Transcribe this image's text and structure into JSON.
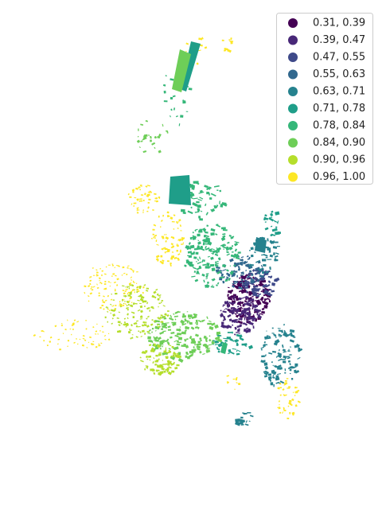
{
  "legend": {
    "items": [
      {
        "label": "0.31, 0.39",
        "color": "#440154"
      },
      {
        "label": "0.39, 0.47",
        "color": "#482878"
      },
      {
        "label": "0.47, 0.55",
        "color": "#3e4989"
      },
      {
        "label": "0.55, 0.63",
        "color": "#31688e"
      },
      {
        "label": "0.63, 0.71",
        "color": "#26828e"
      },
      {
        "label": "0.71, 0.78",
        "color": "#1f9e89"
      },
      {
        "label": "0.78, 0.84",
        "color": "#35b779"
      },
      {
        "label": "0.84, 0.90",
        "color": "#6ece58"
      },
      {
        "label": "0.90, 0.96",
        "color": "#b5de2b"
      },
      {
        "label": "0.96, 1.00",
        "color": "#fde725"
      }
    ]
  }
}
